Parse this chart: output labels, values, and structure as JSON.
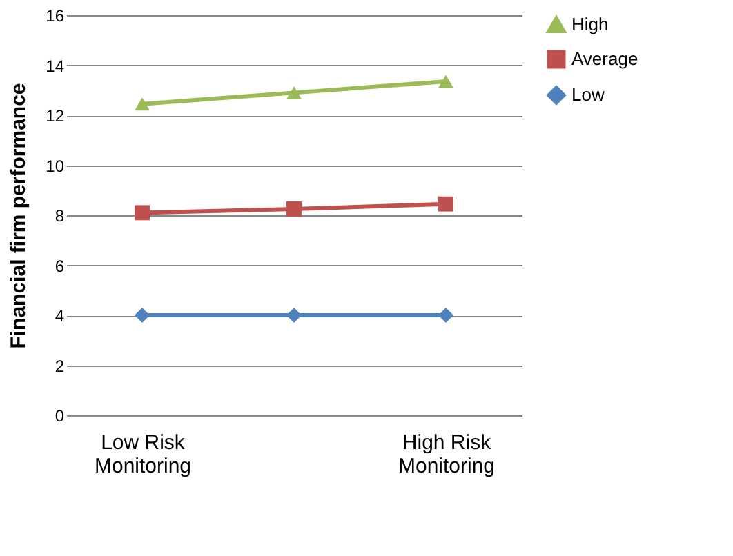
{
  "chart_data": {
    "type": "line",
    "ylabel": "Financial firm performance",
    "categories": [
      "Low Risk Monitoring",
      null,
      "High Risk Monitoring"
    ],
    "ylim": [
      0,
      16
    ],
    "yticks": [
      0,
      2,
      4,
      6,
      8,
      10,
      12,
      14,
      16
    ],
    "grid": "y",
    "legend": "right",
    "line_style": "solid",
    "series": [
      {
        "name": "High",
        "color": "#9bbb59",
        "marker": "triangle",
        "values": [
          12.45,
          12.9,
          13.35
        ]
      },
      {
        "name": "Average",
        "color": "#c0504d",
        "marker": "square",
        "values": [
          8.1,
          8.25,
          8.45
        ]
      },
      {
        "name": "Low",
        "color": "#4f81bd",
        "marker": "diamond",
        "values": [
          4,
          4,
          4
        ]
      }
    ]
  }
}
